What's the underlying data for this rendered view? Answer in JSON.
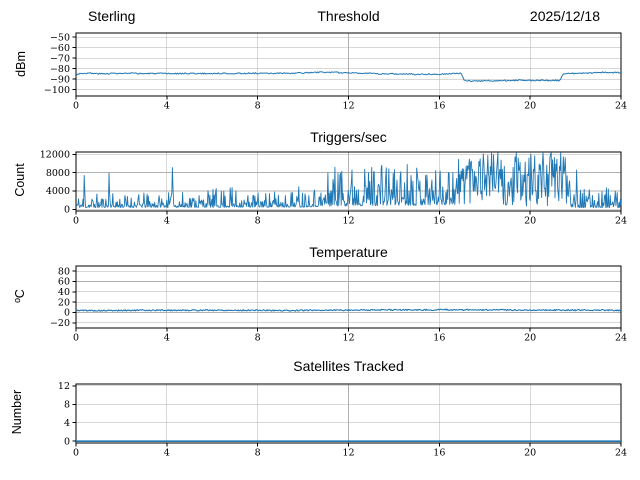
{
  "figure": {
    "background": "#ffffff",
    "line_color": "#1f77b4",
    "grid_color": "#b0b0b0",
    "spine_color": "#000000",
    "station": "Sterling",
    "date": "2025/12/18"
  },
  "chart_data": [
    {
      "type": "line",
      "title": "Threshold",
      "title_left": "Sterling",
      "title_right": "2025/12/18",
      "ylabel": "dBm",
      "xlabel": "",
      "xlim": [
        0,
        24
      ],
      "ylim": [
        -106,
        -46
      ],
      "xticks": [
        0,
        4,
        8,
        12,
        16,
        20,
        24
      ],
      "yticks": [
        -50,
        -60,
        -70,
        -80,
        -90,
        -100
      ],
      "grid": true,
      "legend": null,
      "series": [
        {
          "name": "rf-threshold-dbm",
          "model": "noisy-line",
          "samples": 560,
          "noise": 0.6,
          "keypoints": [
            [
              0,
              -85.3
            ],
            [
              0.2,
              -84.6
            ],
            [
              0.5,
              -84.2
            ],
            [
              0.8,
              -84.6
            ],
            [
              1.2,
              -84.9
            ],
            [
              1.6,
              -84.4
            ],
            [
              2.0,
              -84.6
            ],
            [
              2.5,
              -84.4
            ],
            [
              3.0,
              -84.7
            ],
            [
              3.5,
              -84.5
            ],
            [
              4.0,
              -84.8
            ],
            [
              4.5,
              -84.6
            ],
            [
              5.0,
              -84.4
            ],
            [
              5.5,
              -84.7
            ],
            [
              6.0,
              -84.6
            ],
            [
              6.5,
              -84.4
            ],
            [
              7.0,
              -84.6
            ],
            [
              7.5,
              -84.4
            ],
            [
              8.0,
              -84.3
            ],
            [
              8.5,
              -84.6
            ],
            [
              9.0,
              -84.2
            ],
            [
              9.4,
              -84.6
            ],
            [
              9.8,
              -84.1
            ],
            [
              10.2,
              -83.9
            ],
            [
              10.6,
              -83.5
            ],
            [
              11.0,
              -83.3
            ],
            [
              11.4,
              -83.6
            ],
            [
              11.8,
              -84.0
            ],
            [
              12.2,
              -83.8
            ],
            [
              12.6,
              -84.2
            ],
            [
              13.0,
              -84.6
            ],
            [
              13.4,
              -85.1
            ],
            [
              13.8,
              -84.7
            ],
            [
              14.2,
              -85.2
            ],
            [
              14.6,
              -84.9
            ],
            [
              15.0,
              -85.3
            ],
            [
              15.4,
              -85.1
            ],
            [
              15.8,
              -85.2
            ],
            [
              16.2,
              -85.0
            ],
            [
              16.6,
              -84.7
            ],
            [
              16.95,
              -84.4
            ],
            [
              17.1,
              -91.2
            ],
            [
              17.4,
              -91.7
            ],
            [
              17.8,
              -91.6
            ],
            [
              18.2,
              -91.5
            ],
            [
              18.6,
              -91.4
            ],
            [
              19.0,
              -91.3
            ],
            [
              19.4,
              -91.2
            ],
            [
              19.7,
              -90.9
            ],
            [
              20.0,
              -91.3
            ],
            [
              20.4,
              -91.1
            ],
            [
              20.8,
              -91.3
            ],
            [
              21.1,
              -91.2
            ],
            [
              21.3,
              -91.5
            ],
            [
              21.45,
              -84.6
            ],
            [
              21.7,
              -84.3
            ],
            [
              22.0,
              -84.7
            ],
            [
              22.4,
              -84.4
            ],
            [
              22.8,
              -83.8
            ],
            [
              23.2,
              -83.4
            ],
            [
              23.6,
              -83.7
            ],
            [
              24,
              -83.8
            ]
          ]
        }
      ]
    },
    {
      "type": "line",
      "title": "Triggers/sec",
      "ylabel": "Count",
      "xlabel": "",
      "xlim": [
        0,
        24
      ],
      "ylim": [
        -370,
        12500
      ],
      "xticks": [
        0,
        4,
        8,
        12,
        16,
        20,
        24
      ],
      "yticks": [
        0,
        4000,
        8000,
        12000
      ],
      "grid": true,
      "legend": null,
      "series": [
        {
          "name": "trigger-count",
          "model": "spiky",
          "samples": 860,
          "lo": [
            [
              0,
              400
            ],
            [
              10,
              500
            ],
            [
              11.3,
              700
            ],
            [
              17,
              1000
            ],
            [
              18.6,
              1500
            ],
            [
              19,
              700
            ],
            [
              21.7,
              600
            ],
            [
              22,
              400
            ],
            [
              24,
              400
            ]
          ],
          "hi": [
            [
              0,
              3600
            ],
            [
              4,
              3600
            ],
            [
              6.5,
              4800
            ],
            [
              7,
              4800
            ],
            [
              7.5,
              3800
            ],
            [
              9.3,
              4200
            ],
            [
              9.8,
              5600
            ],
            [
              10.8,
              5400
            ],
            [
              11.2,
              9800
            ],
            [
              12,
              10200
            ],
            [
              12.6,
              8800
            ],
            [
              13.1,
              10800
            ],
            [
              14,
              9500
            ],
            [
              14.6,
              10800
            ],
            [
              15.3,
              9800
            ],
            [
              16,
              8600
            ],
            [
              16.6,
              11800
            ],
            [
              17.1,
              12500
            ],
            [
              18.6,
              12500
            ],
            [
              18.9,
              9500
            ],
            [
              19.3,
              12500
            ],
            [
              19.8,
              11500
            ],
            [
              20.3,
              12500
            ],
            [
              21.7,
              12500
            ],
            [
              21.9,
              6000
            ],
            [
              22.3,
              4400
            ],
            [
              22.9,
              4600
            ],
            [
              23.4,
              5000
            ],
            [
              24,
              3400
            ]
          ],
          "spike_exponent": [
            [
              0,
              3.4
            ],
            [
              10.8,
              3.2
            ],
            [
              11.3,
              2.1
            ],
            [
              16.8,
              2.1
            ],
            [
              17.15,
              0.75
            ],
            [
              18.55,
              0.8
            ],
            [
              18.9,
              1.9
            ],
            [
              19.3,
              1.3
            ],
            [
              20.2,
              1.1
            ],
            [
              20.8,
              0.8
            ],
            [
              21.65,
              0.9
            ],
            [
              21.95,
              2.8
            ],
            [
              24,
              3.0
            ]
          ],
          "spikes": [
            [
              0.35,
              7400
            ],
            [
              1.45,
              7900
            ],
            [
              4.25,
              9100
            ],
            [
              6.8,
              4700
            ],
            [
              22.05,
              8600
            ]
          ]
        }
      ]
    },
    {
      "type": "line",
      "title": "Temperature",
      "ylabel": "ºC",
      "xlabel": "",
      "xlim": [
        0,
        24
      ],
      "ylim": [
        -30,
        90
      ],
      "xticks": [
        0,
        4,
        8,
        12,
        16,
        20,
        24
      ],
      "yticks": [
        -20,
        0,
        20,
        40,
        60,
        80
      ],
      "grid": true,
      "legend": null,
      "series": [
        {
          "name": "temperature-c",
          "model": "noisy-line",
          "samples": 640,
          "noise": 1.3,
          "keypoints": [
            [
              0,
              4.2
            ],
            [
              0.6,
              3.9
            ],
            [
              1.0,
              3.6
            ],
            [
              1.6,
              3.7
            ],
            [
              2.2,
              4.1
            ],
            [
              3.0,
              4.3
            ],
            [
              3.8,
              4.4
            ],
            [
              4.2,
              4.3
            ],
            [
              5.0,
              4.4
            ],
            [
              6.0,
              4.4
            ],
            [
              7.0,
              4.3
            ],
            [
              8.0,
              4.3
            ],
            [
              9.0,
              3.9
            ],
            [
              9.5,
              3.7
            ],
            [
              10.0,
              4.2
            ],
            [
              11.0,
              4.5
            ],
            [
              12.0,
              4.7
            ],
            [
              13.0,
              4.9
            ],
            [
              14.0,
              5.0
            ],
            [
              15.0,
              5.0
            ],
            [
              16.0,
              5.2
            ],
            [
              16.5,
              5.3
            ],
            [
              17.0,
              5.0
            ],
            [
              18.0,
              4.9
            ],
            [
              19.0,
              4.8
            ],
            [
              20.0,
              4.7
            ],
            [
              21.0,
              4.7
            ],
            [
              22.0,
              4.6
            ],
            [
              23.0,
              4.5
            ],
            [
              24,
              4.5
            ]
          ]
        }
      ]
    },
    {
      "type": "line",
      "title": "Satellites Tracked",
      "ylabel": "Number",
      "xlabel": "",
      "xlim": [
        0,
        24
      ],
      "ylim": [
        -0.4,
        12.4
      ],
      "xticks": [
        0,
        4,
        8,
        12,
        16,
        20,
        24
      ],
      "yticks": [
        0,
        4,
        8,
        12
      ],
      "grid": true,
      "legend": null,
      "series": [
        {
          "name": "satellites-tracked",
          "model": "noisy-line",
          "samples": 2,
          "noise": 0,
          "keypoints": [
            [
              0,
              0
            ],
            [
              24,
              0
            ]
          ]
        }
      ]
    }
  ]
}
